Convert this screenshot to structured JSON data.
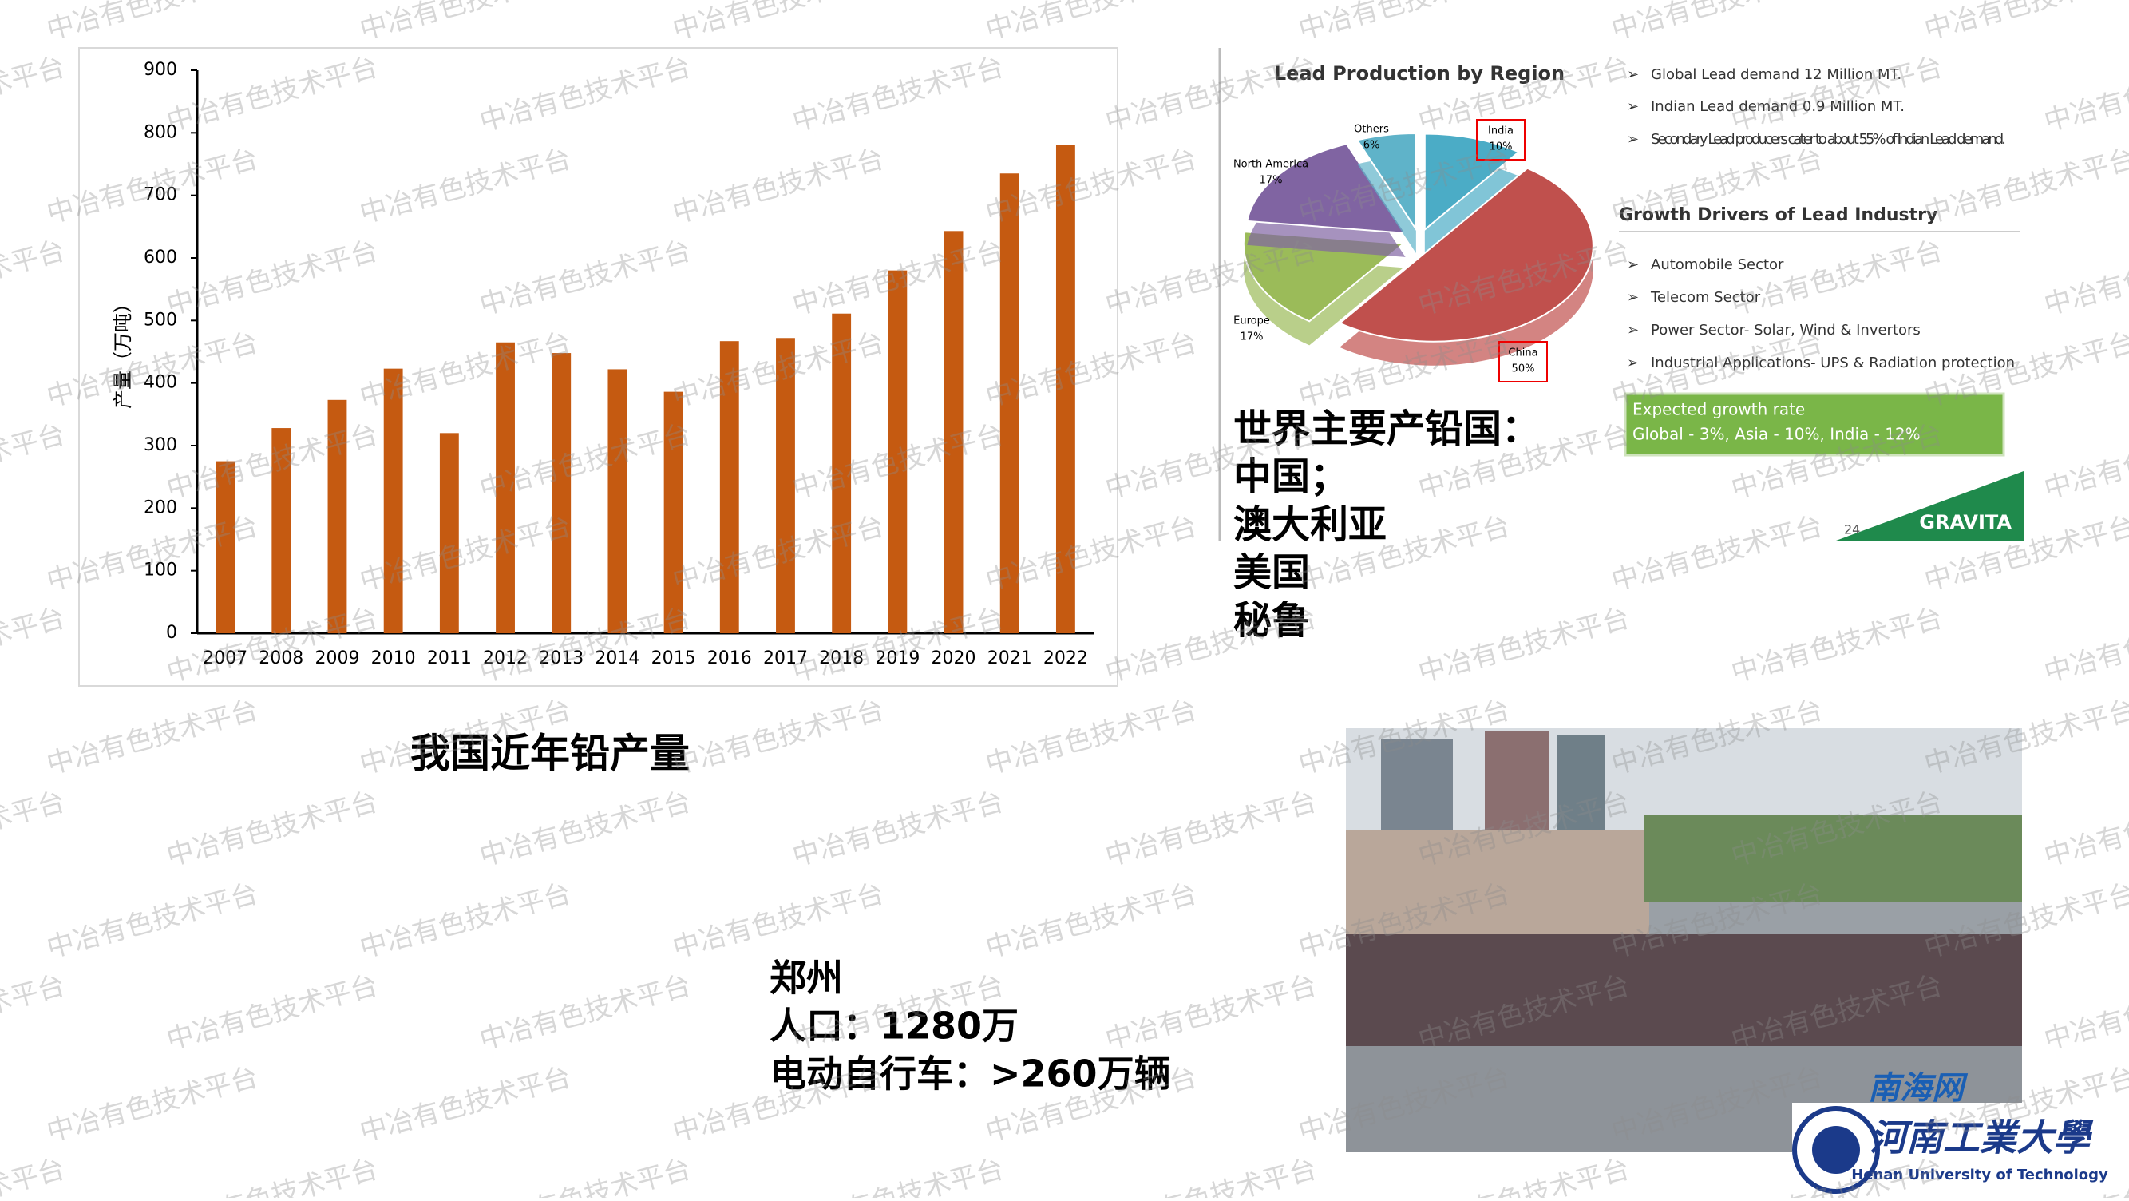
{
  "chart_data": [
    {
      "type": "bar",
      "y_label": "产量（万吨）",
      "categories": [
        "2007",
        "2008",
        "2009",
        "2010",
        "2011",
        "2012",
        "2013",
        "2014",
        "2015",
        "2016",
        "2017",
        "2018",
        "2019",
        "2020",
        "2021",
        "2022"
      ],
      "values": [
        275,
        328,
        373,
        423,
        320,
        465,
        448,
        422,
        386,
        467,
        472,
        511,
        580,
        643,
        735,
        781
      ],
      "color": "#c55a11",
      "ylim": [
        0,
        900
      ],
      "yticks": [
        0,
        100,
        200,
        300,
        400,
        500,
        600,
        700,
        800,
        900
      ],
      "caption": "我国近年铅产量"
    },
    {
      "type": "pie",
      "title": "Lead Production by Region",
      "categories": [
        "India",
        "China",
        "Europe",
        "North America",
        "Others"
      ],
      "values": [
        10,
        50,
        17,
        17,
        6
      ],
      "value_labels": [
        "10%",
        "50%",
        "17%",
        "17%",
        "6%"
      ],
      "colors": [
        "#4bacc6",
        "#c0504d",
        "#9bbb59",
        "#8064a2",
        "#5fb3c9"
      ]
    }
  ],
  "slide_bullets": [
    "Global Lead demand 12 Million MT.",
    "Indian Lead demand 0.9 Million MT.",
    "Secondary Lead producers cater to about 55% of Indian Lead demand."
  ],
  "drivers_heading": "Growth Drivers of Lead Industry",
  "drivers": [
    "Automobile Sector",
    "Telecom Sector",
    "Power Sector-  Solar, Wind & Invertors",
    "Industrial Applications- UPS & Radiation protection"
  ],
  "growth_box": [
    "Expected growth rate",
    "Global - 3%,  Asia - 10%, India - 12%"
  ],
  "slide_number": "24",
  "brand": "GRAVITA",
  "producers": [
    "世界主要产铅国：",
    "中国；",
    "澳大利亚",
    "美国",
    "秘鲁"
  ],
  "city": [
    "郑州",
    "人口：1280万",
    "电动自行车：>260万辆"
  ],
  "photo_credit": "南海网",
  "logo": {
    "name": "河南工業大學",
    "english": "Henan University of Technology"
  },
  "watermark": "中冶有色技术平台"
}
